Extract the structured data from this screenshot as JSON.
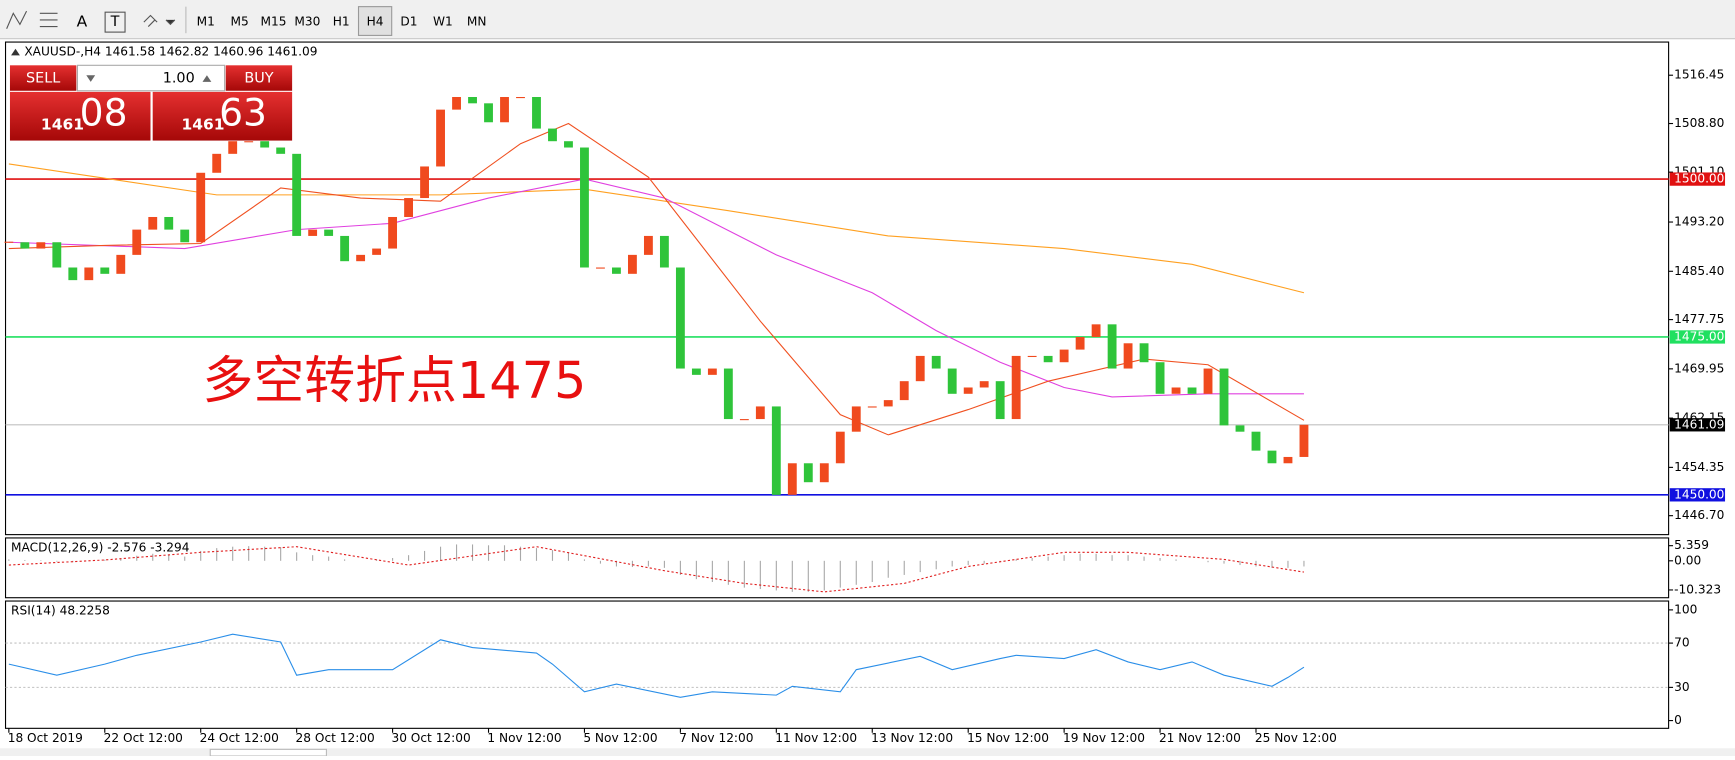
{
  "toolbar": {
    "text_tool": "A",
    "label_tool": "T",
    "timeframes": [
      "M1",
      "M5",
      "M15",
      "M30",
      "H1",
      "H4",
      "D1",
      "W1",
      "MN"
    ],
    "active_index": 5
  },
  "trade_panel": {
    "sell": "SELL",
    "buy": "BUY",
    "lots": "1.00",
    "bid_big": "1461",
    "bid_small": "08",
    "ask_big": "1461",
    "ask_small": "63"
  },
  "chart_data": [
    {
      "type": "candlestick",
      "title": "XAUUSD-,H4  1461.58 1462.82 1460.96 1461.09",
      "up_color": "#f04a1e",
      "down_color": "#2fc43a",
      "close": [
        1490,
        1489,
        1490,
        1486,
        1484,
        1486,
        1485,
        1488,
        1492,
        1494,
        1492,
        1490,
        1501,
        1504,
        1506,
        1506,
        1505,
        1504,
        1491,
        1492,
        1491,
        1487,
        1488,
        1489,
        1494,
        1497,
        1502,
        1511,
        1513,
        1512,
        1509,
        1513,
        1513,
        1508,
        1506,
        1505,
        1486,
        1486,
        1485,
        1488,
        1491,
        1486,
        1470,
        1469,
        1470,
        1462,
        1462,
        1464,
        1450,
        1455,
        1452,
        1455,
        1460,
        1464,
        1464,
        1465,
        1468,
        1472,
        1470,
        1466,
        1467,
        1468,
        1462,
        1472,
        1472,
        1471,
        1473,
        1475,
        1477,
        1470,
        1474,
        1471,
        1466,
        1467,
        1466,
        1470,
        1461,
        1460,
        1457,
        1455,
        1456,
        1461.09
      ],
      "lines": [
        {
          "color": "#ffa020",
          "x": [
            0,
            13,
            27,
            36,
            45,
            55,
            66,
            74,
            81
          ],
          "values": [
            1502.4,
            1497.5,
            1497.5,
            1498.4,
            1495,
            1491,
            1489,
            1486.5,
            1482
          ]
        },
        {
          "color": "#e040e0",
          "x": [
            0,
            11,
            18,
            24,
            30,
            36,
            41,
            48,
            54,
            58,
            62,
            66,
            69,
            75,
            81
          ],
          "values": [
            1490,
            1489,
            1492,
            1493,
            1497,
            1500,
            1497,
            1488,
            1482,
            1476,
            1471,
            1467,
            1465.5,
            1466,
            1466
          ]
        },
        {
          "color": "#f05020",
          "x": [
            0,
            6,
            12,
            17,
            22,
            27,
            32,
            35,
            40,
            47,
            52,
            55,
            60,
            65,
            71,
            75,
            81
          ],
          "values": [
            1489,
            1489.5,
            1489.8,
            1498.6,
            1497,
            1496.5,
            1505.6,
            1508.8,
            1500.3,
            1477.5,
            1462.7,
            1459.5,
            1463.5,
            1468,
            1471.5,
            1470.6,
            1461.8
          ]
        }
      ],
      "levels": [
        {
          "value": 1500,
          "label": "1500.00",
          "color": "#e01010"
        },
        {
          "value": 1475,
          "label": "1475.00",
          "color": "#20e060"
        },
        {
          "value": 1450,
          "label": "1450.00",
          "color": "#1010e0"
        }
      ],
      "last_price": 1461.09,
      "annotation": {
        "text": "多空转折点1475",
        "color": "#e81010"
      },
      "ylim": [
        1443.7,
        1521.7
      ],
      "yticks": [
        1516.45,
        {
          "value": 1508.8,
          "label": "1508.80"
        },
        {
          "value": 1501.1,
          "label": "1501.10"
        },
        {
          "value": 1493.2,
          "label": "1493.20"
        },
        {
          "value": 1485.4,
          "label": "1485.40"
        },
        1477.75,
        1469.95,
        1462.15,
        1454.35,
        {
          "value": 1446.7,
          "label": "1446.70"
        }
      ],
      "xticks": [
        {
          "value": 0,
          "label": "18 Oct 2019"
        },
        {
          "value": 6,
          "label": "22 Oct 12:00"
        },
        {
          "value": 12,
          "label": "24 Oct 12:00"
        },
        {
          "value": 18,
          "label": "28 Oct 12:00"
        },
        {
          "value": 24,
          "label": "30 Oct 12:00"
        },
        {
          "value": 30,
          "label": "1 Nov 12:00"
        },
        {
          "value": 36,
          "label": "5 Nov 12:00"
        },
        {
          "value": 42,
          "label": "7 Nov 12:00"
        },
        {
          "value": 48,
          "label": "11 Nov 12:00"
        },
        {
          "value": 54,
          "label": "13 Nov 12:00"
        },
        {
          "value": 60,
          "label": "15 Nov 12:00"
        },
        {
          "value": 66,
          "label": "19 Nov 12:00"
        },
        {
          "value": 72,
          "label": "21 Nov 12:00"
        },
        {
          "value": 78,
          "label": "25 Nov 12:00"
        }
      ]
    },
    {
      "type": "bar",
      "title": "MACD(12,26,9) -2.576 -3.294",
      "color": "#a8a8a8",
      "values": [
        0.5,
        0.3,
        0.2,
        -0.3,
        -0.5,
        0,
        0.4,
        1,
        1.8,
        2.5,
        2.2,
        1.5,
        3.5,
        4.5,
        5,
        5.2,
        5,
        4.8,
        3,
        2,
        1.5,
        0.5,
        0,
        0.5,
        1,
        2,
        3.5,
        5,
        5.8,
        5.8,
        5.5,
        5.5,
        5,
        4.5,
        3.8,
        3,
        0.5,
        -1,
        -2,
        -2.2,
        -2,
        -2.5,
        -5,
        -6.5,
        -7.5,
        -8.5,
        -9.5,
        -10,
        -10.5,
        -11,
        -11,
        -10.5,
        -9.5,
        -8.5,
        -7.5,
        -6,
        -5,
        -4,
        -3,
        -2,
        -1.5,
        -1,
        -0.5,
        0.5,
        1,
        1.5,
        2,
        2.5,
        2.5,
        2,
        2,
        1.5,
        1,
        0.5,
        0,
        -0.5,
        -1,
        -1.5,
        -2,
        -2.5,
        -2.5,
        -2
      ],
      "signal": {
        "color": "#e02020",
        "x": [
          0,
          6,
          12,
          18,
          25,
          33,
          41,
          46,
          51,
          56,
          60,
          66,
          70,
          76,
          81
        ],
        "values": [
          -1.5,
          0.3,
          3,
          5,
          -1.5,
          5,
          -3.5,
          -8,
          -11,
          -8,
          -2,
          3,
          3,
          0.5,
          -4
        ]
      },
      "ylim": [
        -13.07,
        8.1
      ],
      "yticks": [
        5.359,
        {
          "value": 0,
          "label": "0.00"
        },
        -10.323
      ]
    },
    {
      "type": "line",
      "title": "RSI(14) 48.2258",
      "color": "#2a8ee8",
      "x": [
        0,
        3,
        6,
        8,
        12,
        14,
        17,
        18,
        20,
        24,
        27,
        29,
        33,
        34,
        36,
        38,
        42,
        44,
        48,
        49,
        52,
        53,
        57,
        59,
        62,
        63,
        66,
        68,
        70,
        72,
        74,
        76,
        79,
        80,
        81
      ],
      "values": [
        51,
        41,
        51,
        59,
        71,
        78,
        71,
        41,
        46,
        46,
        73,
        66,
        61,
        51,
        26,
        33,
        21,
        26,
        23,
        31,
        26,
        46,
        58,
        46,
        56,
        59,
        56,
        64,
        53,
        46,
        53,
        41,
        31,
        39,
        48.2258
      ],
      "levels": [
        70,
        30
      ],
      "ylim": [
        -7,
        108
      ],
      "yticks": [
        100,
        70,
        30,
        0
      ]
    }
  ]
}
